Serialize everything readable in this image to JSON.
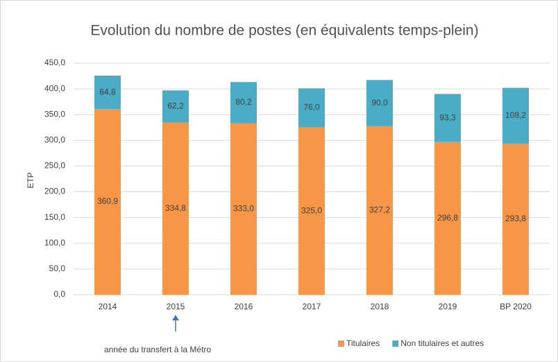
{
  "chart_data": {
    "type": "stacked_bar",
    "title": "Evolution du nombre de postes (en équivalents temps-plein)",
    "y_label": "ETP",
    "annotation": "année du transfert à la Métro",
    "categories": [
      "2014",
      "2015",
      "2016",
      "2017",
      "2018",
      "2019",
      "BP 2020"
    ],
    "series": [
      {
        "name": "Titulaires",
        "color": "#f79646",
        "values": [
          360.9,
          334.8,
          333.0,
          325.0,
          327.2,
          296.8,
          293.8
        ],
        "value_labels": [
          "360,9",
          "334,8",
          "333,0",
          "325,0",
          "327,2",
          "296,8",
          "293,8"
        ]
      },
      {
        "name": "Non titulaires et autres",
        "color": "#4bacc6",
        "values": [
          64.8,
          62.2,
          80.2,
          76.0,
          90.0,
          93.3,
          108.2
        ],
        "value_labels": [
          "64,8",
          "62,2",
          "80,2",
          "76,0",
          "90,0",
          "93,3",
          "108,2"
        ]
      }
    ],
    "ylim": [
      0,
      450
    ],
    "yticks": [
      {
        "value": 0,
        "label": "0,0"
      },
      {
        "value": 50,
        "label": "50,0"
      },
      {
        "value": 100,
        "label": "100,0"
      },
      {
        "value": 150,
        "label": "150,0"
      },
      {
        "value": 200,
        "label": "200,0"
      },
      {
        "value": 250,
        "label": "250,0"
      },
      {
        "value": 300,
        "label": "300,0"
      },
      {
        "value": 350,
        "label": "350,0"
      },
      {
        "value": 400,
        "label": "400,0"
      },
      {
        "value": 450,
        "label": "450,0"
      }
    ],
    "grid": true,
    "legend": "bottom"
  }
}
